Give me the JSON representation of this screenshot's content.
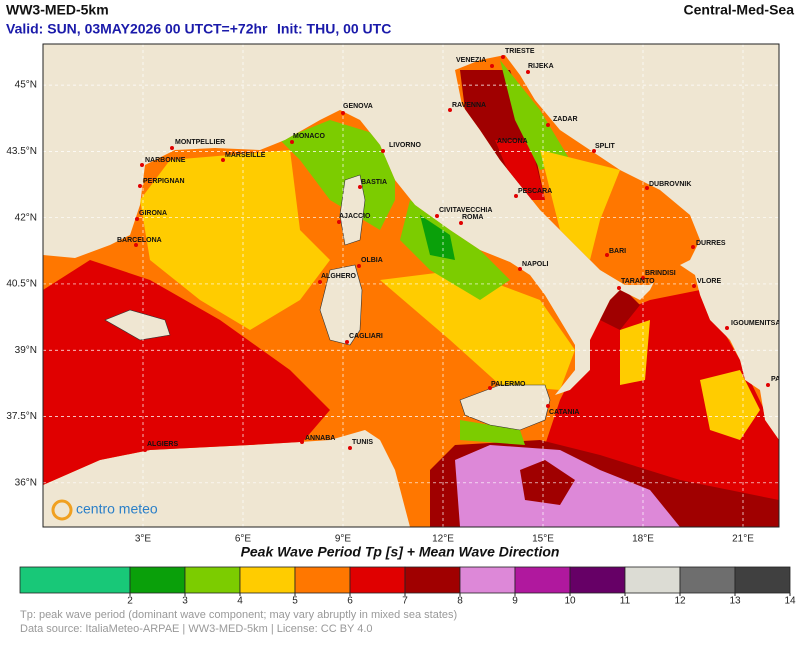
{
  "header": {
    "model": "WW3-MED-5km",
    "region": "Central-Med-Sea",
    "valid": "Valid: SUN, 03MAY2026 00 UTC",
    "lead": "T=+72hr",
    "init": "Init: THU, 00 UTC"
  },
  "map": {
    "xlim": [
      0,
      22.08
    ],
    "ylim": [
      35.0,
      45.93
    ],
    "xticks": [
      {
        "value": 3,
        "label": "3°E"
      },
      {
        "value": 6,
        "label": "6°E"
      },
      {
        "value": 9,
        "label": "9°E"
      },
      {
        "value": 12,
        "label": "12°E"
      },
      {
        "value": 15,
        "label": "15°E"
      },
      {
        "value": 18,
        "label": "18°E"
      },
      {
        "value": 21,
        "label": "21°E"
      }
    ],
    "yticks": [
      {
        "value": 45,
        "label": "45°N"
      },
      {
        "value": 43.5,
        "label": "43.5°N"
      },
      {
        "value": 42,
        "label": "42°N"
      },
      {
        "value": 40.5,
        "label": "40.5°N"
      },
      {
        "value": 39,
        "label": "39°N"
      },
      {
        "value": 37.5,
        "label": "37.5°N"
      },
      {
        "value": 36,
        "label": "36°N"
      }
    ],
    "cities": [
      "TRIESTE",
      "VENEZIA",
      "RIJEKA",
      "RAVENNA",
      "ZADAR",
      "GENOVA",
      "MONTPELLIER",
      "MONACO",
      "LIVORNO",
      "ANCONA",
      "SPLIT",
      "NARBONNE",
      "MARSEILLE",
      "PERPIGNAN",
      "BASTIA",
      "PESCARA",
      "DUBROVNIK",
      "GIRONA",
      "AJACCIO",
      "CIVITAVECCHIA",
      "ROMA",
      "BARCELONA",
      "BARI",
      "DURRES",
      "OLBIA",
      "NAPOLI",
      "BRINDISI",
      "ALGHERO",
      "TARANTO",
      "VLORE",
      "IGOUMENITSA",
      "CAGLIARI",
      "PATRAS",
      "PALERMO",
      "CATANIA",
      "ALGIERS",
      "ANNABA",
      "TUNIS"
    ],
    "logo": "centro meteo"
  },
  "caption": "Peak Wave Period Tp [s]  +  Mean Wave Direction",
  "colorbar": {
    "lim": [
      0,
      14
    ],
    "ticks": [
      2,
      3,
      4,
      5,
      6,
      7,
      8,
      9,
      10,
      11,
      12,
      13,
      14
    ],
    "colors": [
      "#18c878",
      "#0aa00a",
      "#7ccc00",
      "#ffcc00",
      "#ff7700",
      "#e00000",
      "#a00000",
      "#dd88d8",
      "#b0189e",
      "#660066",
      "#dcdcd4",
      "#6e6e6e",
      "#404040"
    ]
  },
  "footnotes": [
    "Tp: peak wave period (dominant wave component; may vary abruptly in mixed sea states)",
    "Data source: ItaliaMeteo-ARPAE | WW3-MED-5km | License: CC BY 4.0"
  ]
}
